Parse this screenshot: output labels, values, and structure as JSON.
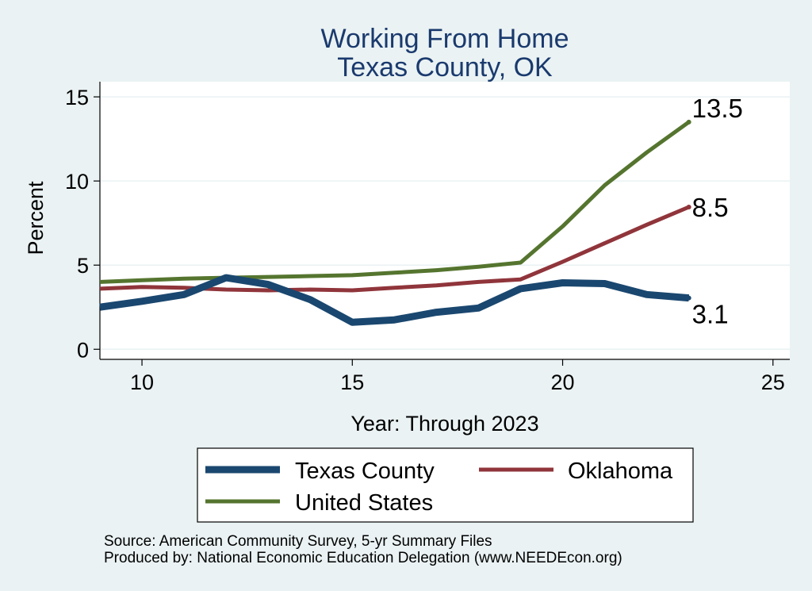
{
  "chart_data": {
    "type": "line",
    "title": "Working From Home",
    "subtitle": "Texas County, OK",
    "xlabel": "Year: Through 2023",
    "ylabel": "Percent",
    "xlim": [
      9,
      25.4
    ],
    "ylim": [
      -0.6,
      15.9
    ],
    "xticks": [
      10,
      15,
      20,
      25
    ],
    "yticks": [
      0,
      5,
      10,
      15
    ],
    "grid": "horizontal",
    "legend_position": "bottom",
    "series": [
      {
        "name": "Texas County",
        "color": "#1a476f",
        "x": [
          9,
          10,
          11,
          12,
          13,
          14,
          15,
          16,
          17,
          18,
          19,
          20,
          21,
          22,
          23
        ],
        "values": [
          2.5,
          2.85,
          3.25,
          4.25,
          3.85,
          2.95,
          1.6,
          1.75,
          2.2,
          2.45,
          3.6,
          3.95,
          3.9,
          3.25,
          3.05
        ],
        "end_label": "3.1"
      },
      {
        "name": "Oklahoma",
        "color": "#90353b",
        "x": [
          9,
          10,
          11,
          12,
          13,
          14,
          15,
          16,
          17,
          18,
          19,
          20,
          21,
          22,
          23
        ],
        "values": [
          3.6,
          3.7,
          3.65,
          3.55,
          3.5,
          3.55,
          3.5,
          3.65,
          3.8,
          4.0,
          4.15,
          5.2,
          6.3,
          7.4,
          8.45
        ],
        "end_label": "8.5"
      },
      {
        "name": "United States",
        "color": "#55752f",
        "x": [
          9,
          10,
          11,
          12,
          13,
          14,
          15,
          16,
          17,
          18,
          19,
          20,
          21,
          22,
          23
        ],
        "values": [
          4.0,
          4.1,
          4.2,
          4.25,
          4.3,
          4.35,
          4.4,
          4.55,
          4.7,
          4.9,
          5.15,
          7.3,
          9.75,
          11.7,
          13.5
        ],
        "end_label": "13.5"
      }
    ]
  },
  "source": {
    "line1": "Source: American Community Survey, 5-yr Summary Files",
    "line2": "Produced by: National Economic Education Delegation (www.NEEDEcon.org)"
  }
}
